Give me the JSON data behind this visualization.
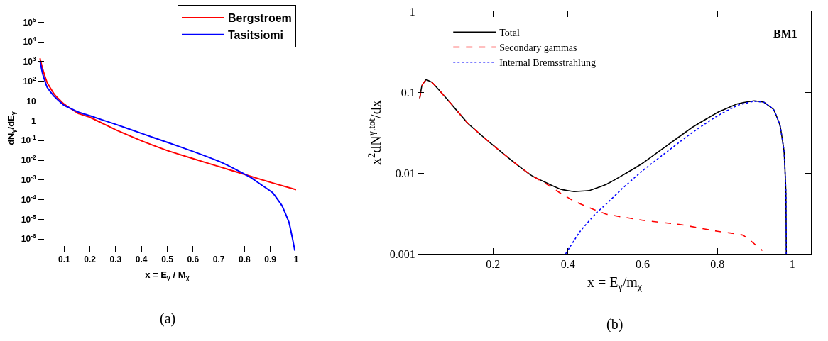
{
  "chart_data": [
    {
      "type": "line",
      "xlabel": "x = E$_{γ}$ / M$_{χ}$",
      "ylabel": "dN$_{γ}$/dE$_{γ}$",
      "annotations": [
        "(a)"
      ],
      "log": "y",
      "grid": false,
      "legend": "top right",
      "marker": "none",
      "line_style": "solid",
      "xlim": [
        0,
        1
      ],
      "xticks": [
        0.1,
        0.2,
        0.3,
        0.4,
        0.5,
        0.6,
        0.7,
        0.8,
        0.9,
        1
      ],
      "ylim": [
        2.3e-07,
        750000.0
      ],
      "yticks": [
        {
          "value": 1e-06,
          "label": "10$^{-6}$"
        },
        {
          "value": 1e-05,
          "label": "10$^{-5}$"
        },
        {
          "value": 0.0001,
          "label": "10$^{-4}$"
        },
        {
          "value": 0.001,
          "label": "10$^{-3}$"
        },
        {
          "value": 0.01,
          "label": "10$^{-2}$"
        },
        {
          "value": 0.1,
          "label": "10$^{-1}$"
        },
        1,
        10,
        {
          "value": 100,
          "label": "10$^{2}$"
        },
        {
          "value": 1000,
          "label": "10$^{3}$"
        },
        {
          "value": 10000,
          "label": "10$^{4}$"
        },
        {
          "value": 100000,
          "label": "10$^{5}$"
        }
      ],
      "series": [
        {
          "name": "Bergstroem",
          "color": "#ff0000",
          "x": [
            0.0064,
            0.016,
            0.034,
            0.062,
            0.098,
            0.154,
            0.2,
            0.3,
            0.4,
            0.5,
            0.6,
            0.7,
            0.8,
            0.9,
            1.0
          ],
          "values": [
            1480,
            460,
            88,
            22,
            7.3,
            2.4,
            1.5,
            0.35,
            0.096,
            0.031,
            0.012,
            0.0048,
            0.0019,
            0.00076,
            0.00032
          ]
        },
        {
          "name": "Tasitsiomi",
          "color": "#0000ff",
          "x": [
            0.0064,
            0.016,
            0.034,
            0.062,
            0.098,
            0.154,
            0.2,
            0.3,
            0.4,
            0.5,
            0.6,
            0.7,
            0.77,
            0.825,
            0.862,
            0.908,
            0.945,
            0.972,
            0.986,
            0.995
          ],
          "values": [
            1100,
            260,
            50,
            17,
            6.3,
            2.8,
            1.8,
            0.66,
            0.23,
            0.081,
            0.028,
            0.0089,
            0.0032,
            0.0013,
            0.0006,
            0.00023,
            5e-05,
            7.2e-06,
            1.05e-06,
            2.6e-07
          ]
        }
      ]
    },
    {
      "type": "line",
      "xlabel": "x = E$_{γ}$/m$_{χ}$",
      "ylabel": "x$^{2}$dN$^{γ,tot}$/dx",
      "annotations": [
        "BM1",
        "(b)"
      ],
      "log": "y",
      "grid": false,
      "legend": "top left",
      "marker": "none",
      "xlim": [
        0,
        1.05
      ],
      "xticks": [
        0.2,
        0.4,
        0.6,
        0.8,
        1
      ],
      "ylim": [
        0.001,
        1
      ],
      "yticks": [
        0.001,
        0.01,
        0.1,
        1
      ],
      "series": [
        {
          "name": "Total",
          "color": "#000000",
          "line_style": "solid",
          "x": [
            0.004,
            0.01,
            0.021,
            0.036,
            0.079,
            0.131,
            0.2,
            0.252,
            0.303,
            0.347,
            0.381,
            0.416,
            0.459,
            0.502,
            0.545,
            0.6,
            0.666,
            0.734,
            0.8,
            0.855,
            0.898,
            0.924,
            0.95,
            0.967,
            0.978,
            0.983,
            0.984
          ],
          "values": [
            0.084,
            0.121,
            0.142,
            0.133,
            0.08,
            0.042,
            0.022,
            0.014,
            0.0093,
            0.0074,
            0.0063,
            0.0059,
            0.0061,
            0.0072,
            0.0093,
            0.0132,
            0.022,
            0.037,
            0.056,
            0.072,
            0.078,
            0.075,
            0.061,
            0.039,
            0.0185,
            0.0056,
            0.001
          ]
        },
        {
          "name": "Secondary gammas",
          "color": "#ff0000",
          "line_style": "dashed",
          "x": [
            0.004,
            0.01,
            0.021,
            0.036,
            0.079,
            0.131,
            0.2,
            0.252,
            0.303,
            0.347,
            0.381,
            0.416,
            0.459,
            0.502,
            0.6,
            0.7,
            0.8,
            0.868,
            0.92
          ],
          "values": [
            0.084,
            0.121,
            0.142,
            0.133,
            0.08,
            0.042,
            0.022,
            0.014,
            0.0093,
            0.0071,
            0.0056,
            0.0045,
            0.0037,
            0.0031,
            0.0026,
            0.0023,
            0.0019,
            0.0017,
            0.0011
          ]
        },
        {
          "name": "Internal Bremsstrahlung",
          "color": "#0000ff",
          "line_style": "dotted",
          "x": [
            0.394,
            0.433,
            0.476,
            0.502,
            0.545,
            0.6,
            0.666,
            0.734,
            0.8,
            0.855,
            0.898,
            0.924,
            0.95,
            0.967,
            0.978,
            0.983,
            0.984
          ],
          "values": [
            0.001,
            0.0019,
            0.0032,
            0.0041,
            0.0064,
            0.0107,
            0.0185,
            0.032,
            0.051,
            0.069,
            0.077,
            0.075,
            0.061,
            0.039,
            0.0185,
            0.0056,
            0.001
          ]
        }
      ]
    }
  ]
}
